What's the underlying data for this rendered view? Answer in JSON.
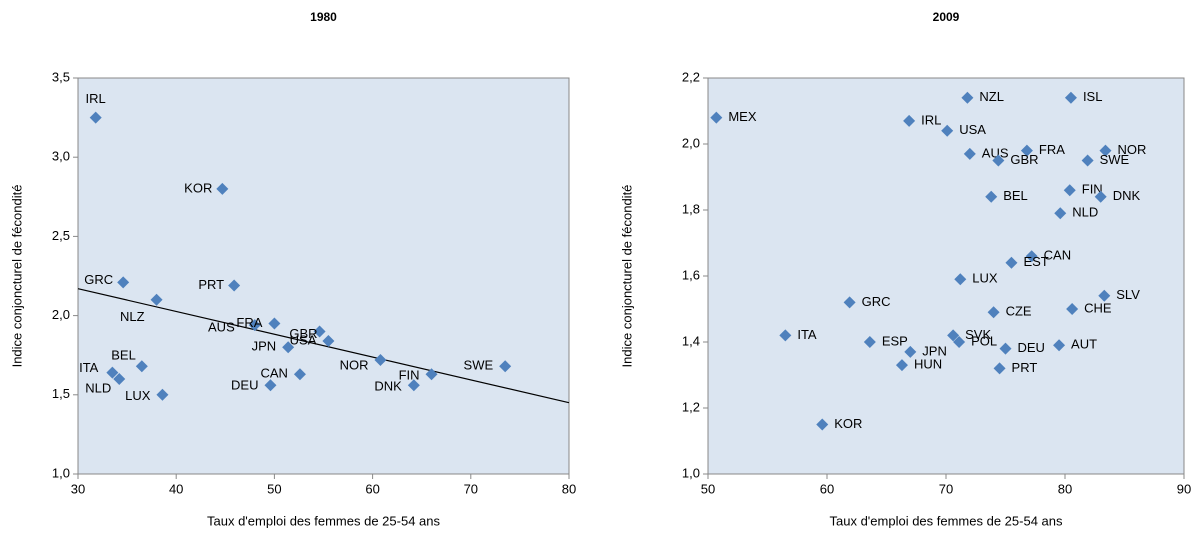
{
  "chart_data": [
    {
      "type": "scatter",
      "title": "1980",
      "xlabel": "Taux d'emploi des femmes  de 25-54 ans",
      "ylabel": "Indice conjoncturel de fécondité",
      "labels": [
        "IRL",
        "KOR",
        "GRC",
        "NLZ",
        "PRT",
        "AUS",
        "FRA",
        "GBR",
        "USA",
        "JPN",
        "NOR",
        "SWE",
        "FIN",
        "DNK",
        "CAN",
        "DEU",
        "ITA",
        "BEL",
        "NLD",
        "LUX"
      ],
      "x": [
        31.8,
        44.7,
        34.6,
        38.0,
        45.9,
        48.0,
        50.0,
        54.6,
        55.5,
        51.4,
        60.8,
        73.5,
        66.0,
        64.2,
        52.6,
        49.6,
        33.5,
        36.5,
        34.2,
        38.6
      ],
      "values": [
        3.25,
        2.8,
        2.21,
        2.1,
        2.19,
        1.94,
        1.95,
        1.9,
        1.84,
        1.8,
        1.72,
        1.68,
        1.63,
        1.56,
        1.63,
        1.56,
        1.64,
        1.68,
        1.6,
        1.5
      ],
      "color": "#4f81bd",
      "trend": {
        "x": [
          30,
          80
        ],
        "values": [
          2.17,
          1.45
        ]
      },
      "xlim": [
        30,
        80
      ],
      "ylim": [
        1.0,
        3.5
      ],
      "xticks": [
        30,
        40,
        50,
        60,
        70,
        80
      ],
      "yticks": [
        {
          "value": 1.0,
          "label": "1,0"
        },
        {
          "value": 1.5,
          "label": "1,5"
        },
        {
          "value": 2.0,
          "label": "2,0"
        },
        {
          "value": 2.5,
          "label": "2,5"
        },
        {
          "value": 3.0,
          "label": "3,0"
        },
        {
          "value": 3.5,
          "label": "3,5"
        }
      ]
    },
    {
      "type": "scatter",
      "title": "2009",
      "xlabel": "Taux d'emploi des femmes  de 25-54 ans",
      "ylabel": "Indice conjoncturel de fécondité",
      "labels": [
        "MEX",
        "IRL",
        "NZL",
        "ISL",
        "USA",
        "AUS",
        "FRA",
        "GBR",
        "NOR",
        "SWE",
        "FIN",
        "DNK",
        "BEL",
        "NLD",
        "CAN",
        "EST",
        "LUX",
        "GRC",
        "SLV",
        "CHE",
        "CZE",
        "ITA",
        "ESP",
        "SVK",
        "POL",
        "JPN",
        "DEU",
        "AUT",
        "HUN",
        "PRT",
        "KOR"
      ],
      "x": [
        50.7,
        66.9,
        71.8,
        80.5,
        70.1,
        72.0,
        76.8,
        74.4,
        83.4,
        81.9,
        80.4,
        83.0,
        73.8,
        79.6,
        77.2,
        75.5,
        71.2,
        61.9,
        83.3,
        80.6,
        74.0,
        56.5,
        63.6,
        70.6,
        71.1,
        67.0,
        75.0,
        79.5,
        66.3,
        74.5,
        59.6
      ],
      "values": [
        2.08,
        2.07,
        2.14,
        2.14,
        2.04,
        1.97,
        1.98,
        1.95,
        1.98,
        1.95,
        1.86,
        1.84,
        1.84,
        1.79,
        1.66,
        1.64,
        1.59,
        1.52,
        1.54,
        1.5,
        1.49,
        1.42,
        1.4,
        1.42,
        1.4,
        1.37,
        1.38,
        1.39,
        1.33,
        1.32,
        1.15
      ],
      "color": "#4f81bd",
      "xlim": [
        50,
        90
      ],
      "ylim": [
        1.0,
        2.2
      ],
      "xticks": [
        50,
        60,
        70,
        80,
        90
      ],
      "yticks": [
        {
          "value": 1.0,
          "label": "1,0"
        },
        {
          "value": 1.2,
          "label": "1,2"
        },
        {
          "value": 1.4,
          "label": "1,4"
        },
        {
          "value": 1.6,
          "label": "1,6"
        },
        {
          "value": 1.8,
          "label": "1,8"
        },
        {
          "value": 2.0,
          "label": "2,0"
        },
        {
          "value": 2.2,
          "label": "2,2"
        }
      ]
    }
  ]
}
